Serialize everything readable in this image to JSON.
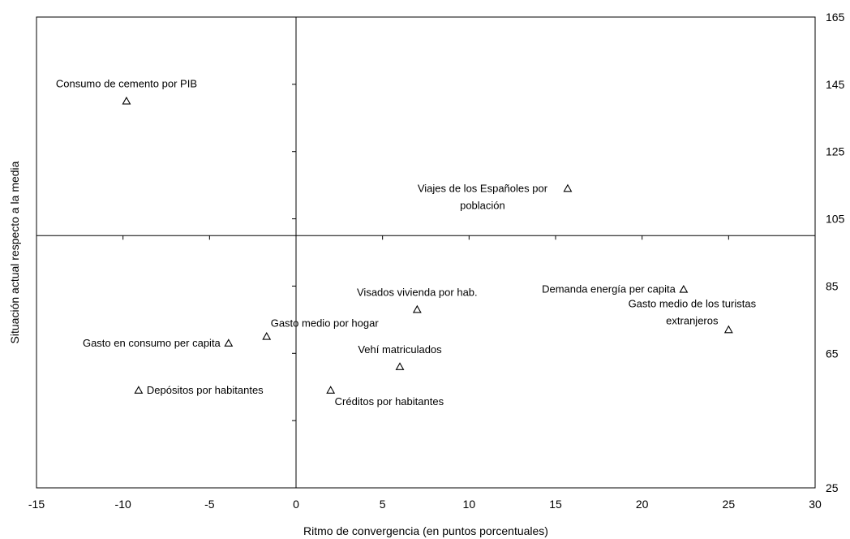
{
  "chart_data": {
    "type": "scatter",
    "xlabel": "Ritmo de convergencia (en puntos porcentuales)",
    "ylabel": "Situación actual respecto a la media",
    "xlim": [
      -15,
      30
    ],
    "ylim": [
      25,
      165
    ],
    "x_ticks": [
      -15,
      -10,
      -5,
      0,
      5,
      10,
      15,
      20,
      25,
      30
    ],
    "y_ticks": [
      25,
      45,
      65,
      85,
      105,
      125,
      145,
      165
    ],
    "y_tick_labels": [
      "25",
      "",
      "65",
      "85",
      "105",
      "125",
      "145",
      "165"
    ],
    "x_axis_crosses_y": 100,
    "y_axis_crosses_x": 0,
    "marker": "open-triangle",
    "grid": false,
    "points": [
      {
        "label": "Consumo de cemento por PIB",
        "x": -9.8,
        "y": 140,
        "label_pos": "above"
      },
      {
        "label": "Viajes de los Españoles por población",
        "label_lines": [
          "Viajes de los Españoles por",
          "población"
        ],
        "x": 15.7,
        "y": 114,
        "label_pos": "left"
      },
      {
        "label": "Demanda energía per capita",
        "x": 22.4,
        "y": 84,
        "label_pos": "left"
      },
      {
        "label": "Gasto medio de los turistas extranjeros",
        "label_lines": [
          "Gasto medio de los turistas",
          "extranjeros"
        ],
        "x": 25,
        "y": 72,
        "label_pos": "above-left"
      },
      {
        "label": "Visados vivienda por hab.",
        "x": 7,
        "y": 78,
        "label_pos": "above"
      },
      {
        "label": "Gasto medio por hogar",
        "x": -1.7,
        "y": 70,
        "label_pos": "above-right"
      },
      {
        "label": "Gasto en consumo per capita",
        "x": -3.9,
        "y": 68,
        "label_pos": "left"
      },
      {
        "label": "Vehí matriculados",
        "x": 6,
        "y": 61,
        "label_pos": "above"
      },
      {
        "label": "Depósitos por  habitantes",
        "x": -9.1,
        "y": 54,
        "label_pos": "right"
      },
      {
        "label": "Créditos por  habitantes",
        "x": 2,
        "y": 54,
        "label_pos": "below-right"
      }
    ]
  }
}
